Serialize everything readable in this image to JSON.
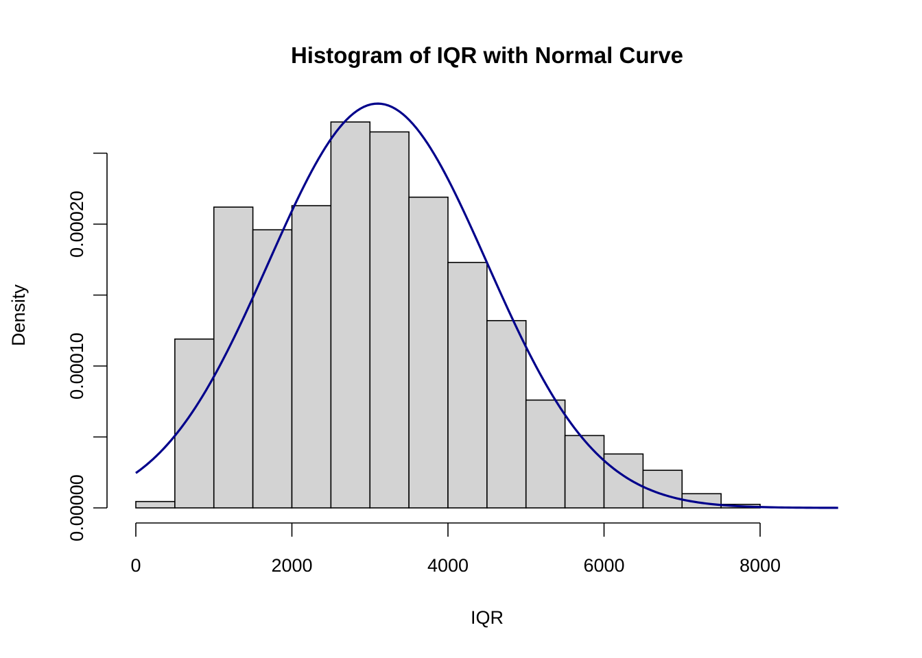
{
  "chart_data": {
    "type": "bar",
    "subtype": "histogram_with_density_curve",
    "title": "Histogram of IQR with Normal Curve",
    "xlabel": "IQR",
    "ylabel": "Density",
    "xlim": [
      0,
      9000
    ],
    "ylim": [
      0,
      0.00025
    ],
    "x_ticks": [
      0,
      2000,
      4000,
      6000,
      8000
    ],
    "x_tick_labels": [
      "0",
      "2000",
      "4000",
      "6000",
      "8000"
    ],
    "y_ticks": [
      0,
      5e-05,
      0.0001,
      0.00015,
      0.0002,
      0.00025
    ],
    "y_tick_labels": [
      "0.00000",
      "",
      "0.00010",
      "",
      "0.00020",
      ""
    ],
    "grid": false,
    "bins": [
      {
        "start": 0,
        "end": 500,
        "density": 4.5e-06
      },
      {
        "start": 500,
        "end": 1000,
        "density": 0.000119
      },
      {
        "start": 1000,
        "end": 1500,
        "density": 0.000212
      },
      {
        "start": 1500,
        "end": 2000,
        "density": 0.000196
      },
      {
        "start": 2000,
        "end": 2500,
        "density": 0.000213
      },
      {
        "start": 2500,
        "end": 3000,
        "density": 0.000272
      },
      {
        "start": 3000,
        "end": 3500,
        "density": 0.000265
      },
      {
        "start": 3500,
        "end": 4000,
        "density": 0.000219
      },
      {
        "start": 4000,
        "end": 4500,
        "density": 0.000173
      },
      {
        "start": 4500,
        "end": 5000,
        "density": 0.000132
      },
      {
        "start": 5000,
        "end": 5500,
        "density": 7.6e-05
      },
      {
        "start": 5500,
        "end": 6000,
        "density": 5.1e-05
      },
      {
        "start": 6000,
        "end": 6500,
        "density": 3.8e-05
      },
      {
        "start": 6500,
        "end": 7000,
        "density": 2.65e-05
      },
      {
        "start": 7000,
        "end": 7500,
        "density": 1e-05
      },
      {
        "start": 7500,
        "end": 8000,
        "density": 2.5e-06
      }
    ],
    "curve": {
      "type": "normal",
      "mean": 3100,
      "sd": 1400,
      "x_range": [
        0,
        9000
      ],
      "color": "#00008b"
    },
    "colors": {
      "bar_fill": "#d3d3d3",
      "bar_stroke": "#000000",
      "curve": "#00008b"
    }
  }
}
